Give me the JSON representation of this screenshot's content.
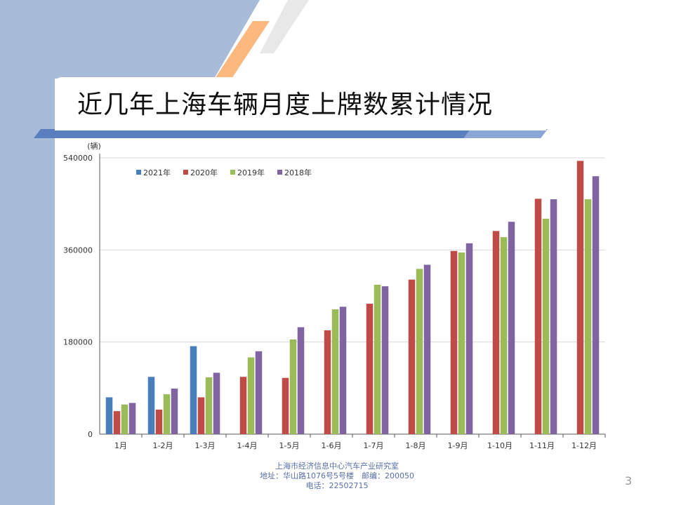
{
  "slide": {
    "title": "近几年上海车辆月度上牌数累计情况",
    "page_number": "3",
    "footer": {
      "line1": "上海市经济信息中心汽车产业研究室",
      "line2": "地址：华山路1076号5号楼　邮编：200050",
      "line3": "电话：22502715"
    }
  },
  "colors": {
    "left_band": "#a8bcd9",
    "accent_bar": "#5a7fbf",
    "orange_stripe": "#fbb87f",
    "gray_stripe": "#e8e8e8"
  },
  "chart_data": {
    "type": "bar",
    "unit_label": "(辆)",
    "categories": [
      "1月",
      "1-2月",
      "1-3月",
      "1-4月",
      "1-5月",
      "1-6月",
      "1-7月",
      "1-8月",
      "1-9月",
      "1-10月",
      "1-11月",
      "1-12月"
    ],
    "series": [
      {
        "name": "2021年",
        "color": "#4a7ebb",
        "values": [
          72000,
          112000,
          172000,
          null,
          null,
          null,
          null,
          null,
          null,
          null,
          null,
          null
        ]
      },
      {
        "name": "2020年",
        "color": "#be4b48",
        "values": [
          45000,
          48000,
          72000,
          112000,
          110000,
          203000,
          255000,
          302000,
          358000,
          397000,
          460000,
          534000
        ]
      },
      {
        "name": "2019年",
        "color": "#9bbb59",
        "values": [
          58000,
          78000,
          111000,
          150000,
          185000,
          244000,
          292000,
          323000,
          355000,
          385000,
          421000,
          459000
        ]
      },
      {
        "name": "2018年",
        "color": "#8064a2",
        "values": [
          61000,
          89000,
          120000,
          162000,
          209000,
          249000,
          289000,
          331000,
          373000,
          415000,
          459000,
          504000
        ]
      }
    ],
    "yticks": [
      0,
      180000,
      360000,
      540000
    ],
    "ylim": [
      0,
      540000
    ],
    "legend_position": "top-left",
    "grid": true
  }
}
